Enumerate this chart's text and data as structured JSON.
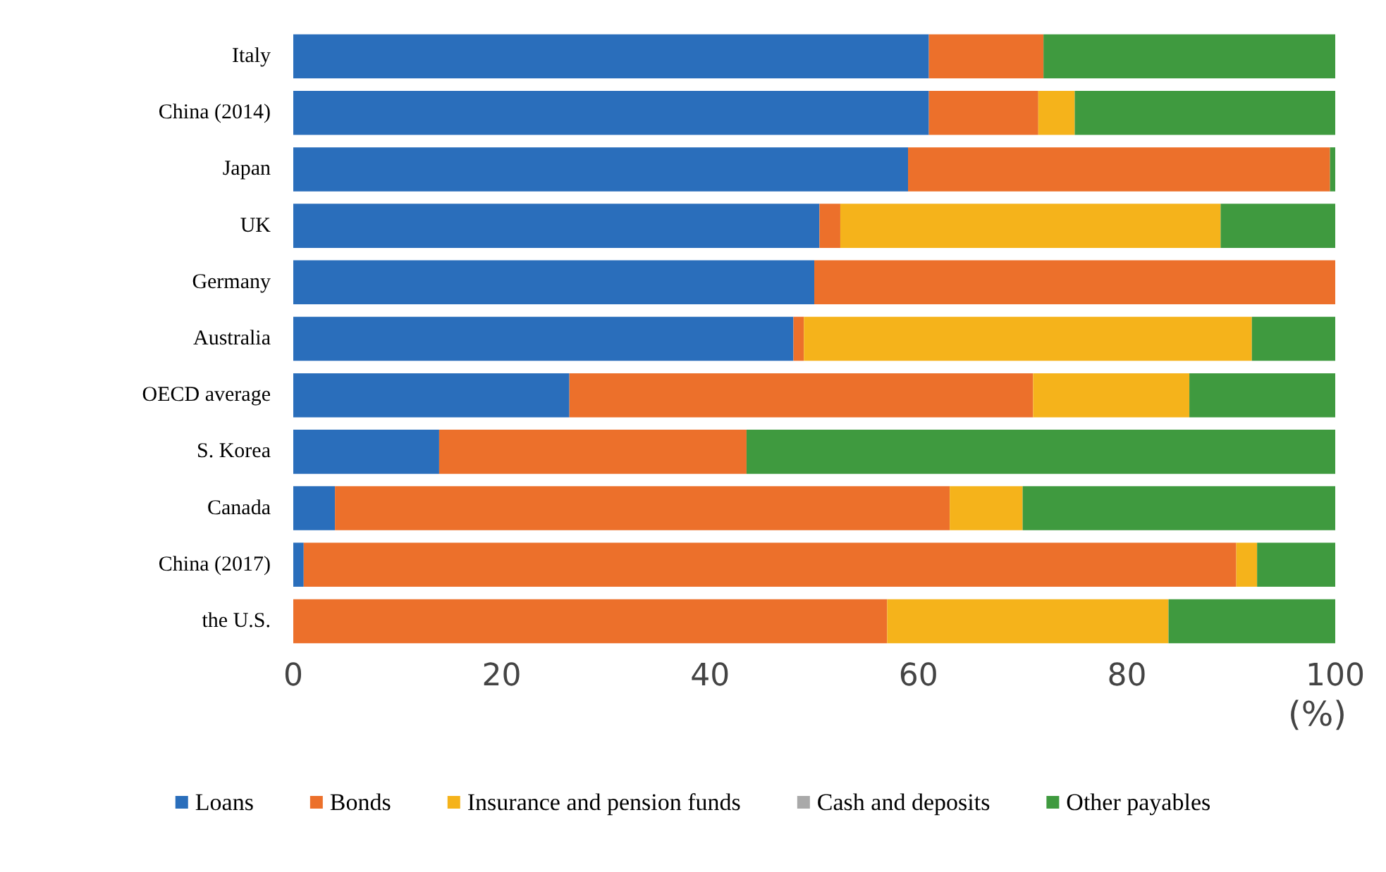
{
  "chart_data": {
    "type": "bar",
    "orientation": "horizontal",
    "stacked": true,
    "xlabel": "(%)",
    "categories": [
      "Italy",
      "China (2014)",
      "Japan",
      "UK",
      "Germany",
      "Australia",
      "OECD average",
      "S. Korea",
      "Canada",
      "China (2017)",
      "the U.S."
    ],
    "series": [
      {
        "name": "Loans",
        "color": "#2a6ebb",
        "values": [
          61,
          61,
          59,
          50.5,
          50,
          48,
          26.5,
          14,
          4,
          1,
          0
        ]
      },
      {
        "name": "Bonds",
        "color": "#ec702b",
        "values": [
          11,
          10.5,
          40.5,
          2,
          50,
          1,
          44.5,
          29.5,
          59,
          89.5,
          57
        ]
      },
      {
        "name": "Insurance and pension funds",
        "color": "#f5b31b",
        "values": [
          0,
          3.5,
          0,
          36.5,
          0,
          43,
          15,
          0,
          7,
          2,
          27
        ]
      },
      {
        "name": "Cash and deposits",
        "color": "#a9a9a9",
        "values": [
          0,
          0,
          0,
          0,
          0,
          0,
          0,
          0,
          0,
          0,
          0
        ]
      },
      {
        "name": "Other payables",
        "color": "#3f9a3f",
        "values": [
          28,
          25,
          0.5,
          11,
          0,
          8,
          14,
          56.5,
          30,
          7.5,
          16
        ]
      }
    ],
    "xlim": [
      0,
      100
    ],
    "xticks": [
      0,
      20,
      40,
      60,
      80,
      100
    ],
    "grid": false,
    "legend": "bottom"
  }
}
